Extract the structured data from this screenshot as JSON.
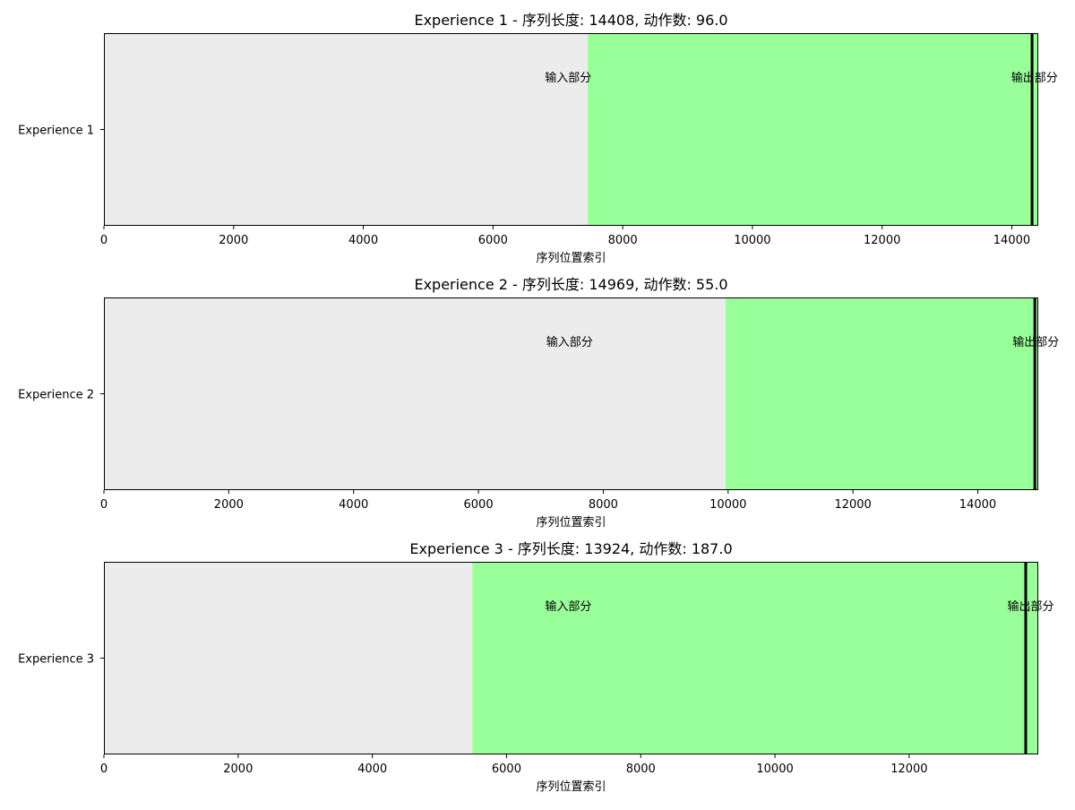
{
  "colors": {
    "background_region": "#ececec",
    "output_region": "#99ff99",
    "marker_line": "#000000",
    "axis": "#000000",
    "figure_bg": "#ffffff"
  },
  "chart_data": [
    {
      "type": "bar",
      "orientation": "horizontal",
      "title": "Experience 1 - 序列长度: 14408, 动作数: 96.0",
      "category": "Experience 1",
      "xlabel": "序列位置索引",
      "xlim": [
        0,
        14408
      ],
      "xticks": [
        0,
        2000,
        4000,
        6000,
        8000,
        10000,
        12000,
        14000
      ],
      "segments": [
        {
          "name": "input",
          "start": 0,
          "end": 7460,
          "color": "#ececec"
        },
        {
          "name": "output",
          "start": 7460,
          "end": 14408,
          "color": "#99ff99"
        }
      ],
      "marker_x": 14312,
      "annotations": [
        {
          "text": "输入部分",
          "x": 7160
        },
        {
          "text": "输出部分",
          "x": 14350
        }
      ],
      "grid": false
    },
    {
      "type": "bar",
      "orientation": "horizontal",
      "title": "Experience 2 - 序列长度: 14969, 动作数: 55.0",
      "category": "Experience 2",
      "xlabel": "序列位置索引",
      "xlim": [
        0,
        14969
      ],
      "xticks": [
        0,
        2000,
        4000,
        6000,
        8000,
        10000,
        12000,
        14000
      ],
      "segments": [
        {
          "name": "input",
          "start": 0,
          "end": 9960,
          "color": "#ececec"
        },
        {
          "name": "output",
          "start": 9960,
          "end": 14969,
          "color": "#99ff99"
        }
      ],
      "marker_x": 14914,
      "annotations": [
        {
          "text": "输入部分",
          "x": 7460
        },
        {
          "text": "输出部分",
          "x": 14930
        }
      ],
      "grid": false
    },
    {
      "type": "bar",
      "orientation": "horizontal",
      "title": "Experience 3 - 序列长度: 13924, 动作数: 187.0",
      "category": "Experience 3",
      "xlabel": "序列位置索引",
      "xlim": [
        0,
        13924
      ],
      "xticks": [
        0,
        2000,
        4000,
        6000,
        8000,
        10000,
        12000
      ],
      "segments": [
        {
          "name": "input",
          "start": 0,
          "end": 5490,
          "color": "#ececec"
        },
        {
          "name": "output",
          "start": 5490,
          "end": 13924,
          "color": "#99ff99"
        }
      ],
      "marker_x": 13737,
      "annotations": [
        {
          "text": "输入部分",
          "x": 6920
        },
        {
          "text": "输出部分",
          "x": 13810
        }
      ],
      "grid": false
    }
  ]
}
